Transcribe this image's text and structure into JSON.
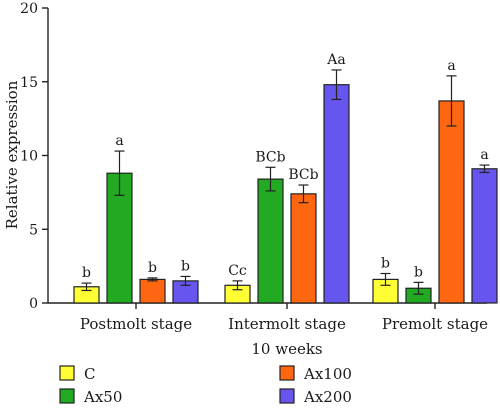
{
  "chart_data": {
    "type": "bar",
    "title": "",
    "ylabel": "Relative expression",
    "xlabel": "10 weeks",
    "ylim": [
      0,
      20
    ],
    "yticks": [
      0,
      5,
      10,
      15,
      20
    ],
    "grid": false,
    "legend_position": "bottom",
    "categories": [
      "Postmolt stage",
      "Intermolt stage",
      "Premolt stage"
    ],
    "series": [
      {
        "name": "C",
        "color": "#ffff33",
        "values": [
          1.1,
          1.2,
          1.6
        ],
        "errors": [
          0.25,
          0.3,
          0.4
        ],
        "labels": [
          "b",
          "Cc",
          "b"
        ]
      },
      {
        "name": "Ax50",
        "color": "#22aa22",
        "values": [
          8.8,
          8.4,
          1.0
        ],
        "errors": [
          1.5,
          0.8,
          0.4
        ],
        "labels": [
          "a",
          "BCb",
          "b"
        ]
      },
      {
        "name": "Ax100",
        "color": "#ff6611",
        "values": [
          1.6,
          7.4,
          13.7
        ],
        "errors": [
          0.1,
          0.6,
          1.7
        ],
        "labels": [
          "b",
          "BCb",
          "a"
        ]
      },
      {
        "name": "Ax200",
        "color": "#6655ee",
        "values": [
          1.5,
          14.8,
          9.1
        ],
        "errors": [
          0.3,
          1.0,
          0.25
        ],
        "labels": [
          "b",
          "Aa",
          "a"
        ]
      }
    ]
  }
}
